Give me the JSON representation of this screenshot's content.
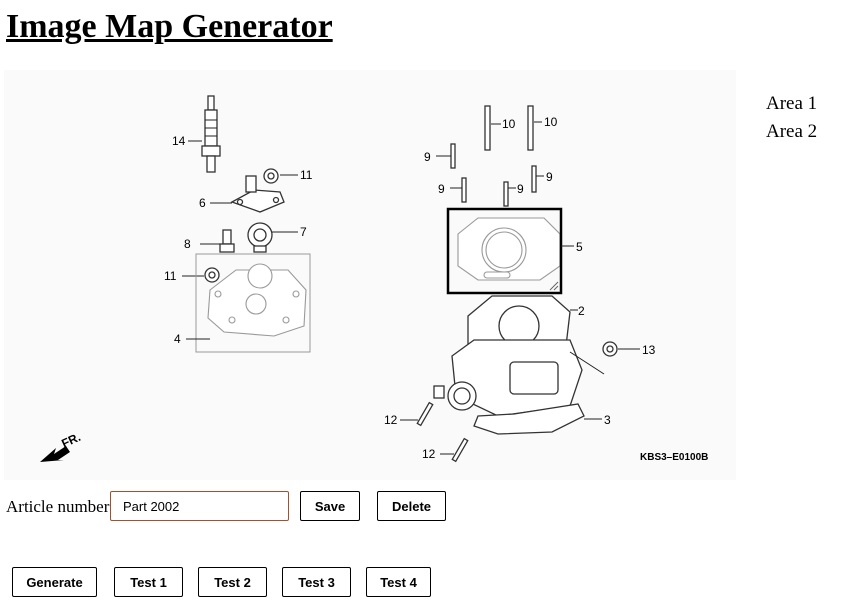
{
  "page_title": "Image Map Generator",
  "diagram": {
    "callouts": {
      "c14": "14",
      "c11a": "11",
      "c6": "6",
      "c7": "7",
      "c8": "8",
      "c11b": "11",
      "c4": "4",
      "c10a": "10",
      "c10b": "10",
      "c9a": "9",
      "c9b": "9",
      "c9c": "9",
      "c9d": "9",
      "c5": "5",
      "c2": "2",
      "c13": "13",
      "c12a": "12",
      "c3": "3",
      "c12b": "12"
    },
    "drawing_code": "KBS3–E0100B",
    "direction_label": "FR."
  },
  "areas": [
    "Area 1",
    "Area 2"
  ],
  "article": {
    "label": "Article number:",
    "value": "Part 2002"
  },
  "buttons": {
    "save": "Save",
    "delete": "Delete",
    "generate": "Generate",
    "test1": "Test 1",
    "test2": "Test 2",
    "test3": "Test 3",
    "test4": "Test 4"
  }
}
